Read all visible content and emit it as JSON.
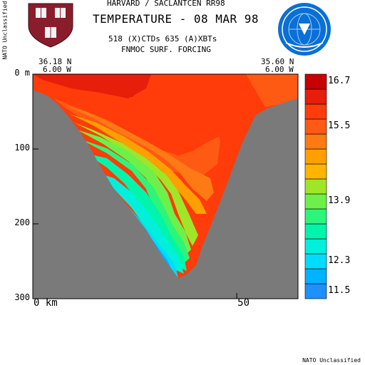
{
  "header": {
    "line1": "HARVARD / SACLANTCEN RR98",
    "main_title": "TEMPERATURE - 08 MAR 98",
    "line3": "518 (X)CTDs   635 (A)XBTs",
    "line4": "FNMOC SURF. FORCING"
  },
  "endpoints": {
    "left": {
      "lat": "36.18 N",
      "lon": "6.00 W"
    },
    "right": {
      "lat": "35.60 N",
      "lon": "6.00 W"
    }
  },
  "classification": {
    "side": "NATO Unclassified",
    "footer": "NATO Unclassified"
  },
  "logos": {
    "left": "harvard-shield-icon",
    "right": "saclantcen-globe-icon"
  },
  "chart_data": {
    "type": "heatmap",
    "title": "TEMPERATURE - 08 MAR 98",
    "y_axis": {
      "range": [
        0,
        300
      ],
      "inverted": true,
      "ticks": [
        {
          "value": 0,
          "label": "0 m"
        },
        {
          "value": 100,
          "label": "100"
        },
        {
          "value": 200,
          "label": "200"
        },
        {
          "value": 300,
          "label": "300"
        }
      ]
    },
    "x_axis": {
      "range_km": [
        0,
        65
      ],
      "ticks": [
        {
          "value": 0,
          "label": "0 km"
        },
        {
          "value": 50,
          "label": "50"
        }
      ]
    },
    "colorbar": {
      "levels_low_to_high": [
        "#1e90ff",
        "#00b2ff",
        "#00dcff",
        "#00f0dc",
        "#00f5aa",
        "#2df57a",
        "#6ef04a",
        "#a0e628",
        "#ffb400",
        "#ffa000",
        "#ff7a14",
        "#ff5a14",
        "#ff3c0a",
        "#e61e0a",
        "#c80000"
      ],
      "tick_labels": [
        {
          "label": "16.7",
          "level": 14
        },
        {
          "label": "15.5",
          "level": 11
        },
        {
          "label": "13.9",
          "level": 6
        },
        {
          "label": "12.3",
          "level": 2
        },
        {
          "label": "11.5",
          "level": 0
        }
      ]
    },
    "colors": {
      "seafloor": "#7a7a7a",
      "background": "#ffffff"
    }
  }
}
